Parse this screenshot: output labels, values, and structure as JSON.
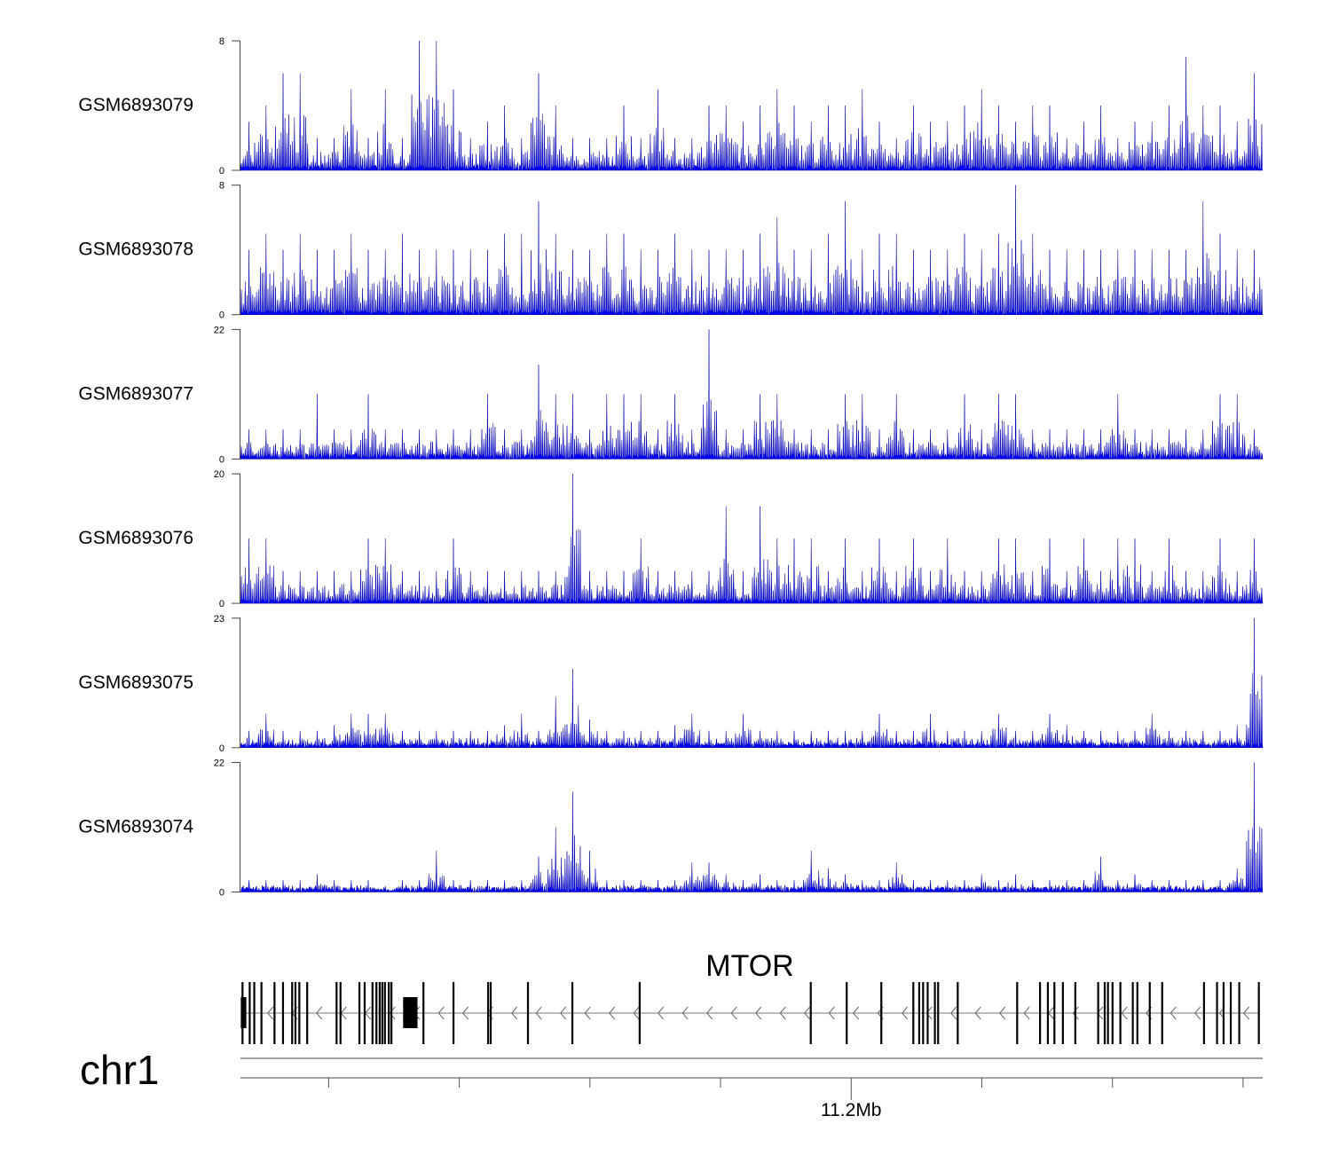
{
  "chart_data": {
    "type": "area",
    "chromosome": "chr1",
    "region_mb": [
      11.1065,
      11.263
    ],
    "axis": {
      "tick_interval_mb": 0.02,
      "ticks_mb": [
        11.12,
        11.14,
        11.16,
        11.18,
        11.2,
        11.22,
        11.24,
        11.26
      ],
      "labeled_tick": "11.2Mb"
    },
    "color": "#0000ff",
    "tracks": [
      {
        "name": "GSM6893079",
        "ylim": [
          0,
          8
        ],
        "ymin_label": "0",
        "ymax_label": "8",
        "values": [
          3,
          4,
          6,
          6,
          2,
          2,
          5,
          2,
          5,
          2,
          8,
          8,
          5,
          2,
          3,
          4,
          2,
          6,
          4,
          2,
          2,
          2,
          4,
          2,
          5,
          2,
          2,
          4,
          4,
          3,
          4,
          5,
          4,
          3,
          4,
          4,
          5,
          3,
          2,
          4,
          3,
          3,
          4,
          5,
          4,
          3,
          4,
          4,
          2,
          3,
          4,
          2,
          3,
          3,
          4,
          7,
          4,
          4,
          3,
          6
        ]
      },
      {
        "name": "GSM6893078",
        "ylim": [
          0,
          8
        ],
        "ymin_label": "0",
        "ymax_label": "8",
        "values": [
          4,
          5,
          4,
          5,
          4,
          4,
          5,
          4,
          4,
          5,
          4,
          4,
          4,
          4,
          4,
          5,
          5,
          7,
          5,
          4,
          4,
          5,
          5,
          4,
          4,
          5,
          4,
          4,
          4,
          4,
          5,
          6,
          4,
          4,
          5,
          7,
          4,
          5,
          5,
          4,
          4,
          4,
          5,
          4,
          5,
          8,
          5,
          4,
          4,
          4,
          4,
          4,
          4,
          4,
          4,
          4,
          7,
          5,
          4,
          4
        ]
      },
      {
        "name": "GSM6893077",
        "ylim": [
          0,
          22
        ],
        "ymin_label": "0",
        "ymax_label": "22",
        "values": [
          5,
          5,
          5,
          5,
          11,
          5,
          5,
          11,
          5,
          5,
          5,
          5,
          5,
          5,
          11,
          5,
          5,
          16,
          11,
          11,
          5,
          11,
          11,
          11,
          5,
          11,
          5,
          22,
          5,
          5,
          11,
          11,
          5,
          5,
          5,
          11,
          11,
          5,
          11,
          5,
          5,
          5,
          11,
          5,
          11,
          11,
          5,
          5,
          5,
          5,
          5,
          11,
          5,
          5,
          5,
          5,
          5,
          11,
          11,
          5
        ]
      },
      {
        "name": "GSM6893076",
        "ylim": [
          0,
          20
        ],
        "ymin_label": "0",
        "ymax_label": "20",
        "values": [
          10,
          10,
          5,
          5,
          5,
          5,
          5,
          10,
          10,
          5,
          5,
          5,
          10,
          5,
          5,
          5,
          5,
          5,
          5,
          20,
          5,
          5,
          5,
          10,
          5,
          5,
          5,
          5,
          15,
          5,
          15,
          10,
          10,
          10,
          5,
          10,
          5,
          10,
          5,
          10,
          5,
          10,
          5,
          5,
          10,
          10,
          5,
          10,
          5,
          10,
          5,
          10,
          10,
          5,
          10,
          5,
          5,
          10,
          5,
          10
        ]
      },
      {
        "name": "GSM6893075",
        "ylim": [
          0,
          23
        ],
        "ymin_label": "0",
        "ymax_label": "23",
        "values": [
          3,
          6,
          3,
          3,
          3,
          4,
          6,
          6,
          6,
          3,
          3,
          3,
          3,
          3,
          3,
          4,
          6,
          3,
          9,
          14,
          5,
          3,
          3,
          3,
          3,
          4,
          6,
          3,
          3,
          6,
          3,
          3,
          3,
          3,
          3,
          3,
          3,
          6,
          3,
          3,
          6,
          3,
          3,
          3,
          6,
          3,
          3,
          6,
          4,
          3,
          3,
          3,
          3,
          6,
          3,
          3,
          3,
          3,
          4,
          23
        ]
      },
      {
        "name": "GSM6893074",
        "ylim": [
          0,
          22
        ],
        "ymin_label": "0",
        "ymax_label": "22",
        "values": [
          2,
          2,
          2,
          2,
          3,
          2,
          2,
          2,
          1,
          2,
          2,
          7,
          2,
          2,
          2,
          2,
          2,
          6,
          11,
          17,
          7,
          2,
          2,
          2,
          2,
          2,
          5,
          5,
          3,
          2,
          3,
          2,
          2,
          7,
          4,
          3,
          2,
          2,
          5,
          2,
          2,
          2,
          2,
          3,
          2,
          3,
          2,
          2,
          2,
          2,
          6,
          2,
          3,
          2,
          2,
          2,
          2,
          2,
          4,
          22
        ]
      }
    ],
    "gene": {
      "name": "MTOR",
      "strand": "-",
      "start_mb": 11.1066,
      "end_mb": 11.2626,
      "exons_mb": [
        11.1068,
        11.1079,
        11.1086,
        11.1097,
        11.1117,
        11.113,
        11.1144,
        11.1149,
        11.1155,
        11.1167,
        11.1212,
        11.1218,
        11.1247,
        11.1255,
        11.1267,
        11.1273,
        11.1278,
        11.1282,
        11.1286,
        11.1292,
        11.1296,
        11.1345,
        11.1391,
        11.1444,
        11.1448,
        11.1505,
        11.1573,
        11.1676,
        11.1938,
        11.1993,
        11.2046,
        11.2095,
        11.2104,
        11.211,
        11.2117,
        11.2128,
        11.2133,
        11.2163,
        11.2254,
        11.2289,
        11.2301,
        11.2311,
        11.2324,
        11.2343,
        11.2378,
        11.2388,
        11.2393,
        11.24,
        11.2412,
        11.2431,
        11.2438,
        11.2457,
        11.2476,
        11.254,
        11.256,
        11.257,
        11.2581,
        11.2594,
        11.2624
      ],
      "utr_blocks_mb": [
        [
          11.10655,
          11.1074
        ],
        [
          11.1314,
          11.1336
        ]
      ]
    }
  }
}
